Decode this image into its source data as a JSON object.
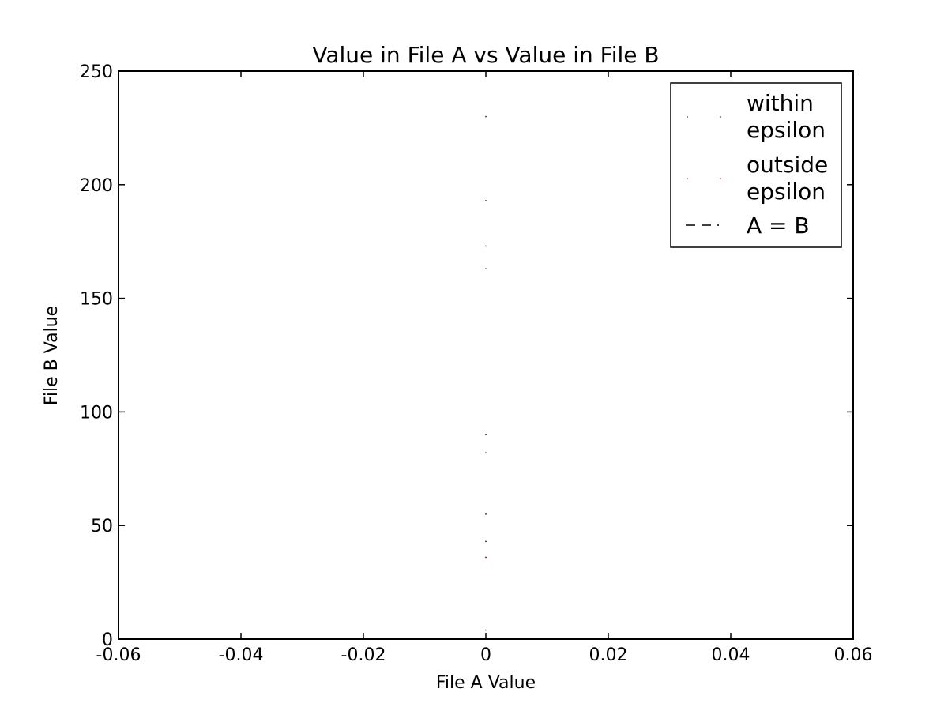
{
  "chart_data": {
    "type": "scatter",
    "title": "Value in File A vs Value in File B",
    "xlabel": "File A Value",
    "ylabel": "File B Value",
    "xlim": [
      -0.06,
      0.06
    ],
    "ylim": [
      0,
      250
    ],
    "x_ticks": [
      -0.06,
      -0.04,
      -0.02,
      0,
      0.02,
      0.04,
      0.06
    ],
    "x_tick_labels": [
      "-0.06",
      "-0.04",
      "-0.02",
      "0",
      "0.02",
      "0.04",
      "0.06"
    ],
    "y_ticks": [
      0,
      50,
      100,
      150,
      200,
      250
    ],
    "y_tick_labels": [
      "0",
      "50",
      "100",
      "150",
      "200",
      "250"
    ],
    "grid": false,
    "legend_position": "top-right",
    "series": [
      {
        "name": "within\nepsilon",
        "kind": "points",
        "color": "#000000",
        "points": [
          {
            "x": 0,
            "y": 230
          },
          {
            "x": 0,
            "y": 193
          },
          {
            "x": 0,
            "y": 173
          },
          {
            "x": 0,
            "y": 163
          },
          {
            "x": 0,
            "y": 90
          },
          {
            "x": 0,
            "y": 82
          },
          {
            "x": 0,
            "y": 55
          },
          {
            "x": 0,
            "y": 43
          },
          {
            "x": 0,
            "y": 36
          },
          {
            "x": 0,
            "y": 4
          }
        ]
      },
      {
        "name": "outside\nepsilon",
        "kind": "points",
        "color": "#cc0000",
        "points": [
          {
            "x": 0,
            "y": 230
          },
          {
            "x": 0,
            "y": 36
          }
        ]
      },
      {
        "name": "A = B",
        "kind": "dashed-line",
        "color": "#000000",
        "points": [
          {
            "x": 0,
            "y": 0
          },
          {
            "x": 0.06,
            "y": 0.06
          }
        ]
      }
    ]
  }
}
